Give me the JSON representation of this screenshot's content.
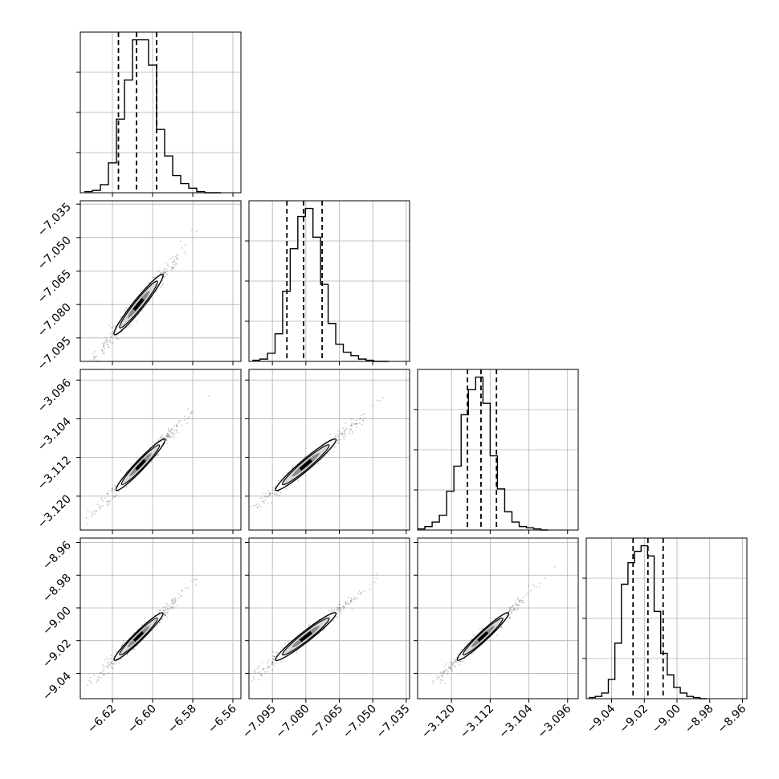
{
  "chart_data": {
    "type": "corner",
    "parameters": [
      {
        "ticks": [
          -6.62,
          -6.6,
          -6.58,
          -6.56
        ],
        "tick_labels": [
          "−6.62",
          "−6.60",
          "−6.58",
          "−6.56"
        ],
        "range": [
          -6.636,
          -6.556
        ],
        "quantiles": [
          -6.617,
          -6.608,
          -6.598
        ],
        "hist_bins": [
          -6.634,
          -6.63,
          -6.626,
          -6.622,
          -6.618,
          -6.614,
          -6.61,
          -6.606,
          -6.602,
          -6.598,
          -6.594,
          -6.59,
          -6.586,
          -6.582,
          -6.578,
          -6.574,
          -6.57,
          -6.566
        ],
        "hist_counts": [
          1,
          2,
          7,
          26,
          64,
          98,
          133,
          133,
          111,
          55,
          32,
          15,
          8,
          4,
          1,
          0,
          0
        ]
      },
      {
        "ticks": [
          -7.095,
          -7.08,
          -7.065,
          -7.05,
          -7.035
        ],
        "tick_labels": [
          "−7.095",
          "−7.080",
          "−7.065",
          "−7.050",
          "−7.035"
        ],
        "range": [
          -7.1055,
          -7.0335
        ],
        "quantiles": [
          -7.0885,
          -7.081,
          -7.0727
        ],
        "hist_bins": [
          -7.104,
          -7.1006,
          -7.0972,
          -7.0938,
          -7.0904,
          -7.087,
          -7.0836,
          -7.0802,
          -7.0768,
          -7.0734,
          -7.07,
          -7.0666,
          -7.0632,
          -7.0598,
          -7.0564,
          -7.053,
          -7.0496,
          -7.0462,
          -7.0428
        ],
        "hist_counts": [
          1,
          2,
          7,
          24,
          61,
          98,
          126,
          133,
          108,
          67,
          33,
          15,
          8,
          5,
          2,
          1,
          0,
          0
        ]
      },
      {
        "ticks": [
          -3.12,
          -3.112,
          -3.104,
          -3.096
        ],
        "tick_labels": [
          "−3.120",
          "−3.112",
          "−3.104",
          "−3.096"
        ],
        "range": [
          -3.127,
          -3.0938
        ],
        "quantiles": [
          -3.1167,
          -3.1139,
          -3.1107
        ],
        "hist_bins": [
          -3.127,
          -3.1255,
          -3.124,
          -3.1225,
          -3.121,
          -3.1195,
          -3.118,
          -3.1165,
          -3.115,
          -3.1135,
          -3.112,
          -3.1105,
          -3.109,
          -3.1075,
          -3.106,
          -3.1045,
          -3.103,
          -3.1015,
          -3.1
        ],
        "hist_counts": [
          1,
          3,
          7,
          13,
          34,
          56,
          101,
          123,
          134,
          111,
          65,
          36,
          16,
          7,
          3,
          2,
          1,
          0
        ]
      },
      {
        "ticks": [
          -9.04,
          -9.02,
          -9.0,
          -8.98,
          -8.96
        ],
        "tick_labels": [
          "−9.04",
          "−9.02",
          "−9.00",
          "−8.98",
          "−8.96"
        ],
        "range": [
          -9.0555,
          -8.9573
        ],
        "quantiles": [
          -9.0269,
          -9.0178,
          -9.0085
        ],
        "hist_bins": [
          -9.054,
          -9.05,
          -9.046,
          -9.042,
          -9.038,
          -9.034,
          -9.03,
          -9.026,
          -9.022,
          -9.018,
          -9.014,
          -9.01,
          -9.006,
          -9.002,
          -8.998,
          -8.994,
          -8.99,
          -8.986,
          -8.982
        ],
        "hist_counts": [
          1,
          2,
          5,
          17,
          49,
          101,
          120,
          130,
          135,
          126,
          77,
          40,
          21,
          10,
          5,
          2,
          1,
          0
        ]
      }
    ],
    "pairs": [
      {
        "x": 0,
        "y": 1,
        "center": [
          -6.607,
          -7.08
        ],
        "sx": 0.0078,
        "sy": 0.0087
      },
      {
        "x": 0,
        "y": 2,
        "center": [
          -6.606,
          -3.1135
        ],
        "sx": 0.0078,
        "sy": 0.0034
      },
      {
        "x": 0,
        "y": 3,
        "center": [
          -6.607,
          -9.0175
        ],
        "sx": 0.0078,
        "sy": 0.0093
      },
      {
        "x": 1,
        "y": 2,
        "center": [
          -7.08,
          -3.1135
        ],
        "sx": 0.0087,
        "sy": 0.0034
      },
      {
        "x": 1,
        "y": 3,
        "center": [
          -7.08,
          -9.0175
        ],
        "sx": 0.0087,
        "sy": 0.0093
      },
      {
        "x": 2,
        "y": 3,
        "center": [
          -3.1135,
          -9.0175
        ],
        "sx": 0.0034,
        "sy": 0.0093
      }
    ],
    "grid": true,
    "quantile_style": "dashed"
  }
}
